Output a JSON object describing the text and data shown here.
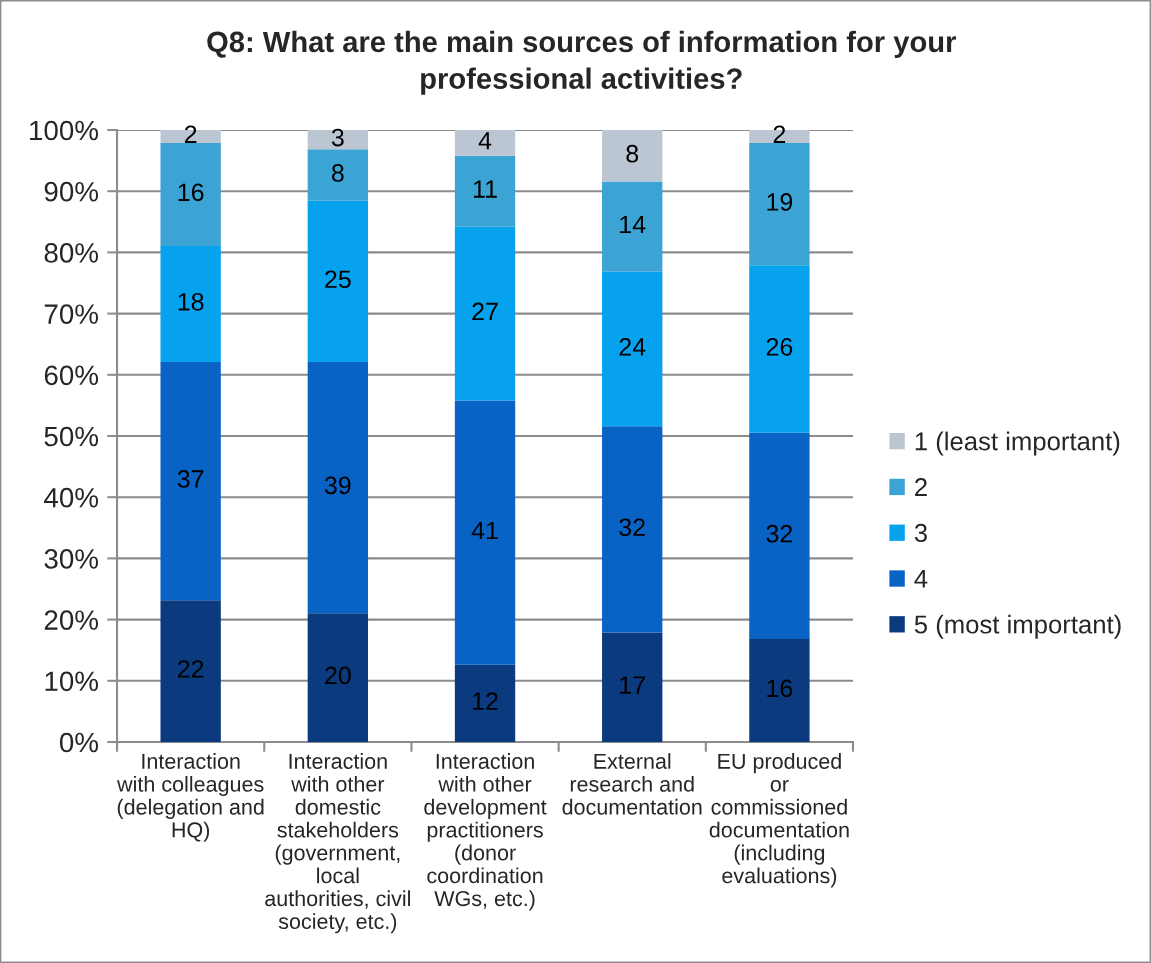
{
  "chart_data": {
    "type": "bar",
    "stacked": true,
    "title": "Q8: What are the main sources of information for your\nprofessional activities?",
    "categories": [
      "Interaction\nwith colleagues\n(delegation and\nHQ)",
      "Interaction\nwith other\ndomestic\nstakeholders\n(government,\nlocal\nauthorities, civil\nsociety, etc.)",
      "Interaction\nwith other\ndevelopment\npractitioners\n(donor\ncoordination\nWGs, etc.)",
      "External\nresearch and\ndocumentation",
      "EU produced\nor\ncommissioned\ndocumentation\n(including\nevaluations)"
    ],
    "series": [
      {
        "name": "5 (most important)",
        "color": "#0b3a7e",
        "axis": "y2",
        "values": [
          22,
          20,
          12,
          17,
          16
        ]
      },
      {
        "name": "4",
        "color": "#0863c4",
        "axis": "y2",
        "values": [
          37,
          39,
          41,
          32,
          32
        ]
      },
      {
        "name": "3",
        "color": "#06a2ee",
        "axis": "y2",
        "values": [
          18,
          25,
          27,
          24,
          26
        ]
      },
      {
        "name": "2",
        "color": "#3ba4d4",
        "axis": "y2",
        "values": [
          16,
          8,
          11,
          14,
          19
        ]
      },
      {
        "name": "1 (least important)",
        "color": "#bcc6d3",
        "axis": "y2",
        "values": [
          2,
          3,
          4,
          8,
          2
        ]
      }
    ],
    "ylim": [
      0,
      100
    ],
    "yticks": [
      {
        "value": 0,
        "label": "0%"
      },
      {
        "value": 10,
        "label": "10%"
      },
      {
        "value": 20,
        "label": "20%"
      },
      {
        "value": 30,
        "label": "30%"
      },
      {
        "value": 40,
        "label": "40%"
      },
      {
        "value": 50,
        "label": "50%"
      },
      {
        "value": 60,
        "label": "60%"
      },
      {
        "value": 70,
        "label": "70%"
      },
      {
        "value": 80,
        "label": "80%"
      },
      {
        "value": 90,
        "label": "90%"
      },
      {
        "value": 100,
        "label": "100%"
      }
    ],
    "y2lim": [
      0,
      95
    ],
    "grid": "y",
    "legend": "right",
    "data_labels": true
  }
}
